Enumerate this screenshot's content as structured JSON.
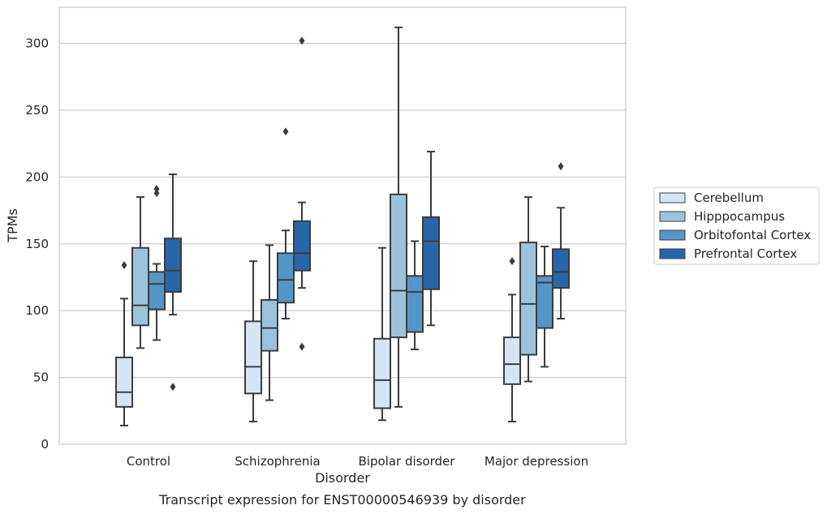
{
  "chart_data": {
    "type": "box",
    "xlabel": "Disorder",
    "ylabel": "TPMs",
    "caption": "Transcript expression for ENST00000546939 by disorder",
    "ylim": [
      0,
      327
    ],
    "yticks": [
      0,
      50,
      100,
      150,
      200,
      250,
      300
    ],
    "grid": true,
    "legend_position": "right",
    "categories": [
      "Control",
      "Schizophrenia",
      "Bipolar disorder",
      "Major depression"
    ],
    "series": [
      {
        "name": "Cerebellum",
        "color": "#d6e5f3",
        "boxes": [
          {
            "whisker_low": 14,
            "q1": 28,
            "median": 39,
            "q3": 65,
            "whisker_high": 109,
            "outliers": [
              134
            ]
          },
          {
            "whisker_low": 17,
            "q1": 38,
            "median": 58,
            "q3": 92,
            "whisker_high": 137,
            "outliers": []
          },
          {
            "whisker_low": 18,
            "q1": 27,
            "median": 48,
            "q3": 79,
            "whisker_high": 147,
            "outliers": []
          },
          {
            "whisker_low": 17,
            "q1": 45,
            "median": 60,
            "q3": 80,
            "whisker_high": 112,
            "outliers": [
              137
            ]
          }
        ]
      },
      {
        "name": "Hipppocampus",
        "color": "#9ac4de",
        "boxes": [
          {
            "whisker_low": 72,
            "q1": 89,
            "median": 104,
            "q3": 147,
            "whisker_high": 185,
            "outliers": []
          },
          {
            "whisker_low": 33,
            "q1": 70,
            "median": 87,
            "q3": 108,
            "whisker_high": 149,
            "outliers": []
          },
          {
            "whisker_low": 28,
            "q1": 80,
            "median": 115,
            "q3": 187,
            "whisker_high": 312,
            "outliers": []
          },
          {
            "whisker_low": 47,
            "q1": 67,
            "median": 105,
            "q3": 151,
            "whisker_high": 185,
            "outliers": []
          }
        ]
      },
      {
        "name": "Orbitofontal Cortex",
        "color": "#5596c8",
        "boxes": [
          {
            "whisker_low": 78,
            "q1": 101,
            "median": 120,
            "q3": 129,
            "whisker_high": 135,
            "outliers": [
              188,
              191
            ]
          },
          {
            "whisker_low": 94,
            "q1": 106,
            "median": 123,
            "q3": 143,
            "whisker_high": 160,
            "outliers": [
              234
            ]
          },
          {
            "whisker_low": 71,
            "q1": 84,
            "median": 114,
            "q3": 126,
            "whisker_high": 152,
            "outliers": []
          },
          {
            "whisker_low": 58,
            "q1": 87,
            "median": 121,
            "q3": 126,
            "whisker_high": 148,
            "outliers": []
          }
        ]
      },
      {
        "name": "Prefrontal Cortex",
        "color": "#2866a8",
        "boxes": [
          {
            "whisker_low": 97,
            "q1": 114,
            "median": 130,
            "q3": 154,
            "whisker_high": 202,
            "outliers": [
              43
            ]
          },
          {
            "whisker_low": 117,
            "q1": 130,
            "median": 143,
            "q3": 167,
            "whisker_high": 181,
            "outliers": [
              73,
              302
            ]
          },
          {
            "whisker_low": 89,
            "q1": 116,
            "median": 152,
            "q3": 170,
            "whisker_high": 219,
            "outliers": []
          },
          {
            "whisker_low": 94,
            "q1": 117,
            "median": 129,
            "q3": 146,
            "whisker_high": 177,
            "outliers": [
              208
            ]
          }
        ]
      }
    ]
  }
}
